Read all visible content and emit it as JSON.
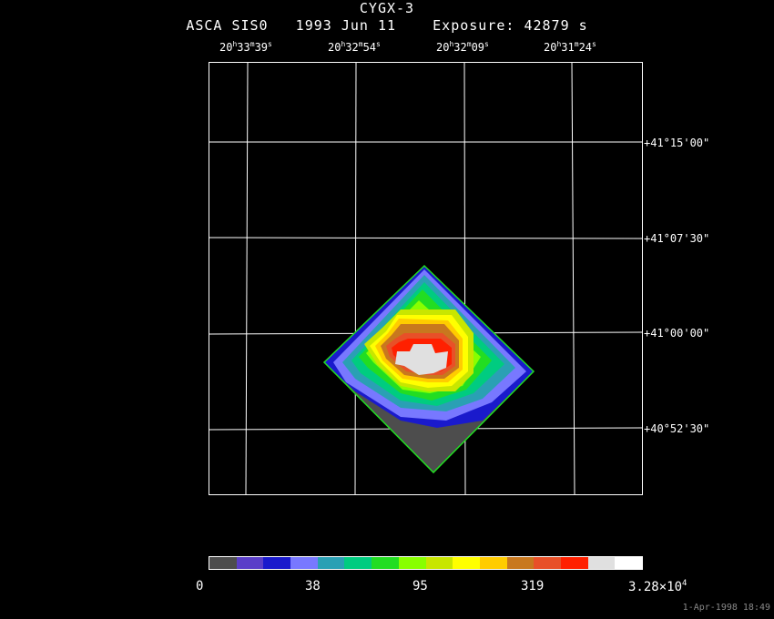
{
  "header": {
    "title": "CYGX-3",
    "subtitle": "ASCA SIS0   1993 Jun 11    Exposure: 42879 s"
  },
  "ra_ticks": [
    {
      "h": "20",
      "m": "33",
      "s": "39"
    },
    {
      "h": "20",
      "m": "32",
      "s": "54"
    },
    {
      "h": "20",
      "m": "32",
      "s": "09"
    },
    {
      "h": "20",
      "m": "31",
      "s": "24"
    }
  ],
  "dec_ticks": [
    "+41°15'00\"",
    "+41°07'30\"",
    "+41°00'00\"",
    "+40°52'30\""
  ],
  "colorbar": {
    "colors": [
      "#4d4d4d",
      "#5a3ec8",
      "#1a1acc",
      "#7878ff",
      "#2aa0b4",
      "#00cc80",
      "#22dd22",
      "#88ff00",
      "#c8e600",
      "#ffff00",
      "#ffcc00",
      "#c8781e",
      "#e85028",
      "#ff2000",
      "#e0e0e0",
      "#ffffff"
    ],
    "labels": [
      "0",
      "38",
      "95",
      "319",
      "3.28×10"
    ],
    "exponent": "4"
  },
  "footer": {
    "timestamp": "1-Apr-1998 18:49"
  }
}
